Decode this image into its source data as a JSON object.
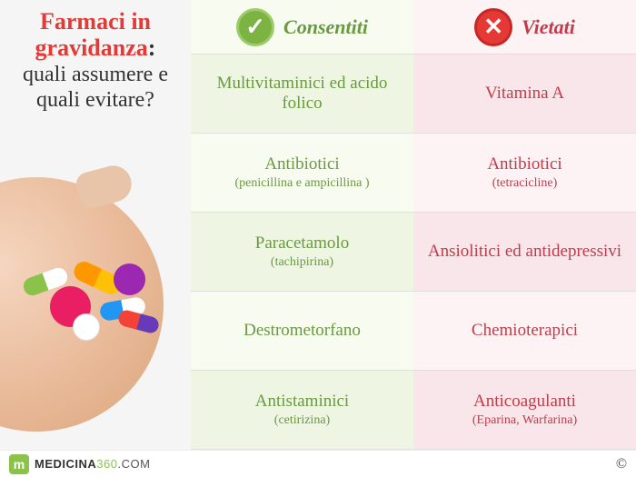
{
  "colors": {
    "title_red": "#e53935",
    "allowed_green": "#6a9a3f",
    "allowed_bg_even": "#eef5e3",
    "allowed_bg_odd": "#f7fbf0",
    "forbidden_red": "#c23b4a",
    "forbidden_bg_even": "#f9e6ea",
    "forbidden_bg_odd": "#fdf3f5",
    "check_bg": "#7cb342",
    "check_border": "#9ccc65",
    "cross_bg": "#e53935",
    "cross_border": "#c62828"
  },
  "left": {
    "title_red": "Farmaci in gravidanza",
    "title_black": "quali assumere e quali evitare?"
  },
  "columns": {
    "allowed": {
      "header": "Consentiti",
      "rows": [
        {
          "main": "Multivitaminici ed acido folico",
          "sub": ""
        },
        {
          "main": "Antibiotici",
          "sub": "(penicillina e ampicillina )"
        },
        {
          "main": "Paracetamolo",
          "sub": "(tachipirina)"
        },
        {
          "main": "Destrometorfano",
          "sub": ""
        },
        {
          "main": "Antistaminici",
          "sub": "(cetirizina)"
        }
      ]
    },
    "forbidden": {
      "header": "Vietati",
      "rows": [
        {
          "main": "Vitamina A",
          "sub": ""
        },
        {
          "main": "Antibiotici",
          "sub": "(tetracicline)"
        },
        {
          "main": "Ansiolitici ed antidepressivi",
          "sub": ""
        },
        {
          "main": "Chemioterapici",
          "sub": ""
        },
        {
          "main": "Anticoagulanti",
          "sub": "(Eparina, Warfarina)"
        }
      ]
    }
  },
  "footer": {
    "logo_letter": "m",
    "brand_bold": "MEDICINA",
    "brand_num": "360",
    "brand_suffix": ".COM",
    "copyright": "©"
  }
}
